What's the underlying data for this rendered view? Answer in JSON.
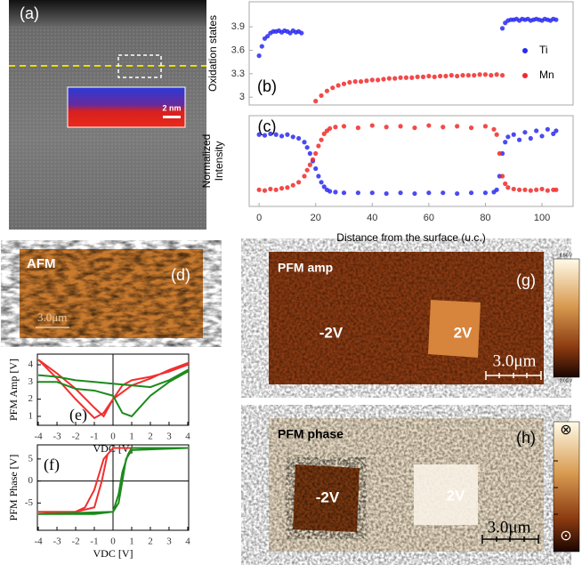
{
  "panels": {
    "a": {
      "label": "(a)",
      "scale_bar": "2 nm"
    },
    "d": {
      "title": "AFM",
      "label": "(d)",
      "scale_bar": "3.0μm"
    },
    "g": {
      "title": "PFM amp",
      "label": "(g)",
      "left": "-2V",
      "right": "2V",
      "scale_bar": "3.0μm",
      "cbar_top": "8.50 V",
      "cbar_bottom": "0.00 V"
    },
    "h": {
      "title": "PFM phase",
      "label": "(h)",
      "left": "-2V",
      "right": "2V",
      "scale_bar": "3.0μm",
      "cbar_top": "⊗",
      "cbar_bottom": "⊙"
    }
  },
  "chart_data": [
    {
      "type": "scatter",
      "panel_label": "(b)",
      "y_label": [
        "Oxidation states"
      ],
      "xlim": [
        -3.5,
        111
      ],
      "ylim": [
        2.9,
        4.22
      ],
      "yticks": [
        3.0,
        3.3,
        3.6,
        3.9
      ],
      "legend": "right",
      "series": [
        {
          "name": "Ti",
          "color": "#2a2af0",
          "x": [
            0,
            1,
            2,
            3,
            4,
            5,
            6,
            7,
            8,
            9,
            10,
            11,
            12,
            13,
            14,
            15,
            86,
            87,
            88,
            89,
            90,
            91,
            92,
            93,
            94,
            95,
            96,
            97,
            98,
            99,
            100,
            101,
            102,
            103,
            104,
            105
          ],
          "values": [
            3.53,
            3.65,
            3.75,
            3.78,
            3.82,
            3.84,
            3.84,
            3.85,
            3.83,
            3.85,
            3.84,
            3.82,
            3.85,
            3.83,
            3.84,
            3.82,
            3.88,
            3.95,
            3.98,
            3.99,
            3.99,
            4.0,
            3.98,
            4.0,
            3.99,
            4.0,
            3.98,
            3.99,
            4.0,
            3.99,
            3.98,
            4.0,
            3.99,
            3.98,
            4.0,
            3.99
          ]
        },
        {
          "name": "Mn",
          "color": "#f02a2a",
          "x": [
            20,
            22,
            24,
            26,
            28,
            30,
            32,
            34,
            36,
            38,
            40,
            42,
            44,
            46,
            48,
            50,
            52,
            54,
            56,
            58,
            60,
            62,
            64,
            66,
            68,
            70,
            72,
            74,
            76,
            78,
            80,
            82,
            84,
            86
          ],
          "values": [
            2.95,
            3.02,
            3.08,
            3.12,
            3.15,
            3.17,
            3.19,
            3.2,
            3.2,
            3.21,
            3.22,
            3.22,
            3.23,
            3.24,
            3.24,
            3.25,
            3.25,
            3.25,
            3.26,
            3.26,
            3.27,
            3.26,
            3.27,
            3.27,
            3.28,
            3.27,
            3.28,
            3.28,
            3.28,
            3.29,
            3.29,
            3.28,
            3.29,
            3.28
          ]
        }
      ]
    },
    {
      "type": "scatter",
      "panel_label": "(c)",
      "y_label": [
        "Normalized",
        "Intensity"
      ],
      "x_label": "Distance from the surface (u.c.)",
      "xlim": [
        -3.5,
        111
      ],
      "xticks": [
        0,
        20,
        40,
        60,
        80,
        100
      ],
      "ylim": [
        -0.1,
        1.1
      ],
      "series": [
        {
          "color": "#2a2af0",
          "x": [
            0,
            2,
            4,
            6,
            8,
            10,
            12,
            14,
            16,
            17,
            18,
            19,
            20,
            21,
            22,
            23,
            24,
            25,
            27,
            30,
            35,
            40,
            45,
            50,
            55,
            60,
            65,
            70,
            75,
            80,
            83,
            84,
            85,
            86,
            87,
            88,
            90,
            92,
            94,
            96,
            98,
            100,
            102,
            104,
            105
          ],
          "values": [
            0.85,
            0.84,
            0.86,
            0.85,
            0.83,
            0.85,
            0.82,
            0.8,
            0.75,
            0.68,
            0.6,
            0.5,
            0.4,
            0.3,
            0.22,
            0.16,
            0.12,
            0.1,
            0.09,
            0.08,
            0.08,
            0.08,
            0.07,
            0.08,
            0.07,
            0.08,
            0.08,
            0.07,
            0.08,
            0.08,
            0.09,
            0.12,
            0.3,
            0.6,
            0.75,
            0.82,
            0.85,
            0.78,
            0.88,
            0.8,
            0.9,
            0.83,
            0.92,
            0.86,
            0.9
          ]
        },
        {
          "color": "#f02a2a",
          "x": [
            0,
            2,
            4,
            6,
            8,
            10,
            12,
            14,
            16,
            17,
            18,
            19,
            20,
            21,
            22,
            23,
            24,
            25,
            27,
            30,
            35,
            40,
            45,
            50,
            55,
            60,
            65,
            70,
            75,
            80,
            83,
            84,
            85,
            86,
            87,
            88,
            90,
            92,
            94,
            96,
            98,
            100,
            102,
            104,
            105
          ],
          "values": [
            0.12,
            0.11,
            0.13,
            0.12,
            0.14,
            0.15,
            0.18,
            0.22,
            0.3,
            0.38,
            0.45,
            0.52,
            0.6,
            0.7,
            0.78,
            0.86,
            0.9,
            0.93,
            0.95,
            0.96,
            0.94,
            0.97,
            0.95,
            0.96,
            0.94,
            0.97,
            0.95,
            0.96,
            0.94,
            0.96,
            0.92,
            0.85,
            0.6,
            0.3,
            0.2,
            0.15,
            0.13,
            0.12,
            0.12,
            0.11,
            0.12,
            0.13,
            0.11,
            0.12,
            0.12
          ]
        }
      ]
    },
    {
      "type": "line",
      "panel_label": "(e)",
      "y_label": [
        "PFM Amp [V]"
      ],
      "x_label": "VDC [V]",
      "xlim": [
        -4.05,
        4.05
      ],
      "xticks": [
        -4,
        -3,
        -2,
        -1,
        0,
        1,
        2,
        3,
        4
      ],
      "ylim": [
        0.48,
        4.62
      ],
      "yticks": [
        1,
        2,
        3,
        4
      ],
      "series": [
        {
          "color": "#f03030",
          "x": [
            -4,
            -3,
            -2,
            -1,
            -0.5,
            0,
            0.5,
            1,
            2,
            3,
            4,
            4,
            3,
            2,
            1,
            0,
            -0.5,
            -1,
            -2,
            -3,
            -4
          ],
          "values": [
            4.3,
            3.5,
            2.6,
            1.5,
            1.0,
            2.0,
            2.8,
            3.1,
            3.3,
            3.6,
            4.0,
            4.1,
            3.7,
            3.2,
            2.8,
            2.0,
            1.2,
            0.9,
            2.0,
            3.2,
            4.3
          ]
        },
        {
          "color": "#1c8a1c",
          "x": [
            -4,
            -3,
            -2,
            -1,
            0,
            0.5,
            1,
            2,
            3,
            4,
            4,
            3,
            2,
            1,
            0,
            -1,
            -2,
            -3,
            -4
          ],
          "values": [
            3.0,
            3.0,
            2.6,
            2.5,
            2.2,
            1.2,
            1.0,
            2.2,
            3.0,
            3.6,
            3.7,
            3.1,
            2.7,
            2.8,
            2.9,
            3.0,
            3.1,
            3.3,
            3.4
          ]
        }
      ]
    },
    {
      "type": "line",
      "panel_label": "(f)",
      "y_label": [
        "PFM Phase [V]"
      ],
      "x_label": "VDC [V]",
      "xlim": [
        -4.05,
        4.05
      ],
      "xticks": [
        -4,
        -3,
        -2,
        -1,
        0,
        1,
        2,
        3,
        4
      ],
      "ylim": [
        -11.2,
        8.2
      ],
      "yticks": [
        -5,
        0,
        5
      ],
      "series": [
        {
          "color": "#f03030",
          "x": [
            -4,
            -2,
            -1.5,
            -1,
            -0.5,
            0,
            1,
            4,
            4,
            0,
            -0.3,
            -0.6,
            -1,
            -2,
            -4
          ],
          "values": [
            -7,
            -7,
            -6,
            -2,
            5,
            7.5,
            7.5,
            7.5,
            7.5,
            7.5,
            6,
            0,
            -6,
            -7,
            -7.5
          ]
        },
        {
          "color": "#1c8a1c",
          "x": [
            -4,
            -1,
            0,
            0.3,
            0.5,
            0.8,
            1,
            4,
            4,
            1,
            0.7,
            0.5,
            0.3,
            0,
            -4
          ],
          "values": [
            -7.5,
            -7.5,
            -7,
            -3,
            2,
            6,
            7.5,
            7.5,
            7.5,
            7,
            5,
            0,
            -5,
            -7,
            -7.5
          ]
        }
      ]
    }
  ]
}
